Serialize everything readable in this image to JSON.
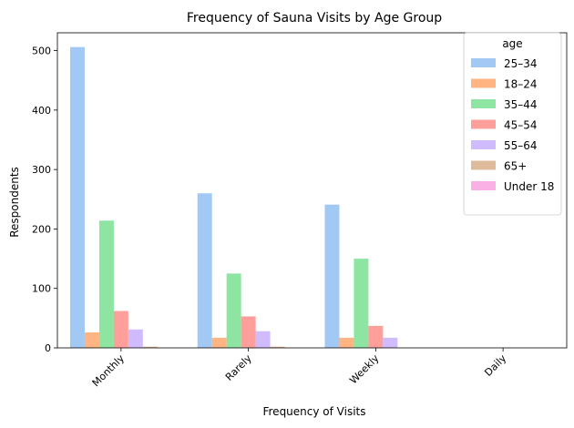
{
  "chart_data": {
    "type": "bar",
    "title": "Frequency of Sauna Visits by Age Group",
    "xlabel": "Frequency of Visits",
    "ylabel": "Respondents",
    "categories": [
      "Monthly",
      "Rarely",
      "Weekly",
      "Daily"
    ],
    "ylim": [
      0,
      530
    ],
    "yticks": [
      0,
      100,
      200,
      300,
      400,
      500
    ],
    "grid": false,
    "legend": {
      "title": "age",
      "placement": "top-right"
    },
    "series": [
      {
        "name": "25–34",
        "color": "#a1c9f4",
        "values": [
          506,
          260,
          241,
          0
        ]
      },
      {
        "name": "18–24",
        "color": "#ffb482",
        "values": [
          26,
          17,
          17,
          0
        ]
      },
      {
        "name": "35–44",
        "color": "#8de5a1",
        "values": [
          214,
          125,
          150,
          0
        ]
      },
      {
        "name": "45–54",
        "color": "#ff9f9b",
        "values": [
          62,
          53,
          37,
          0
        ]
      },
      {
        "name": "55–64",
        "color": "#d0bbff",
        "values": [
          31,
          28,
          17,
          0
        ]
      },
      {
        "name": "65+",
        "color": "#debb9b",
        "values": [
          2,
          2,
          0,
          0
        ]
      },
      {
        "name": "Under 18",
        "color": "#fab0e4",
        "values": [
          0,
          0,
          0,
          0
        ]
      }
    ]
  }
}
